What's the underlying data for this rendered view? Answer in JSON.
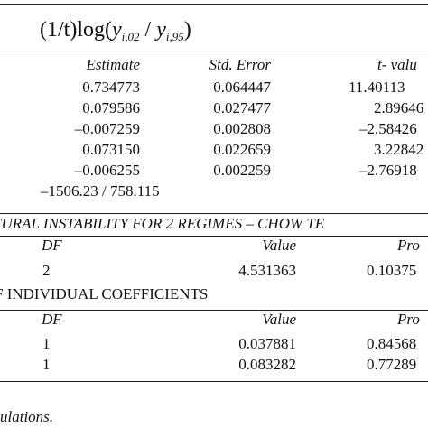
{
  "header": {
    "formula": [
      "(1/t)log(",
      "y",
      "i,02",
      " / ",
      "y",
      "i,95",
      ")"
    ]
  },
  "estimates": {
    "columns": [
      "Estimate",
      "Std. Error",
      "t- valu"
    ],
    "rows": [
      [
        "0.734773",
        "0.064447",
        "11.40113"
      ],
      [
        "0.079586",
        "0.027477",
        "2.89646"
      ],
      [
        "–0.007259",
        "0.002808",
        "–2.58426"
      ],
      [
        "0.073150",
        "0.022659",
        "3.22842"
      ],
      [
        "–0.006255",
        "0.002259",
        "–2.76918"
      ]
    ],
    "extra": "–1506.23 / 758.115"
  },
  "chow": {
    "title": "TURAL INSTABILITY FOR 2 REGIMES – CHOW TE",
    "columns": [
      "DF",
      "Value",
      "Pro"
    ],
    "rows": [
      [
        "2",
        "4.531363",
        "0.10375"
      ]
    ]
  },
  "coefficients": {
    "title": "F INDIVIDUAL COEFFICIENTS",
    "columns": [
      "DF",
      "Value",
      "Pro"
    ],
    "rows": [
      [
        "1",
        "0.037881",
        "0.84568"
      ],
      [
        "1",
        "0.083282",
        "0.77289"
      ]
    ]
  },
  "footnote": "ulations."
}
